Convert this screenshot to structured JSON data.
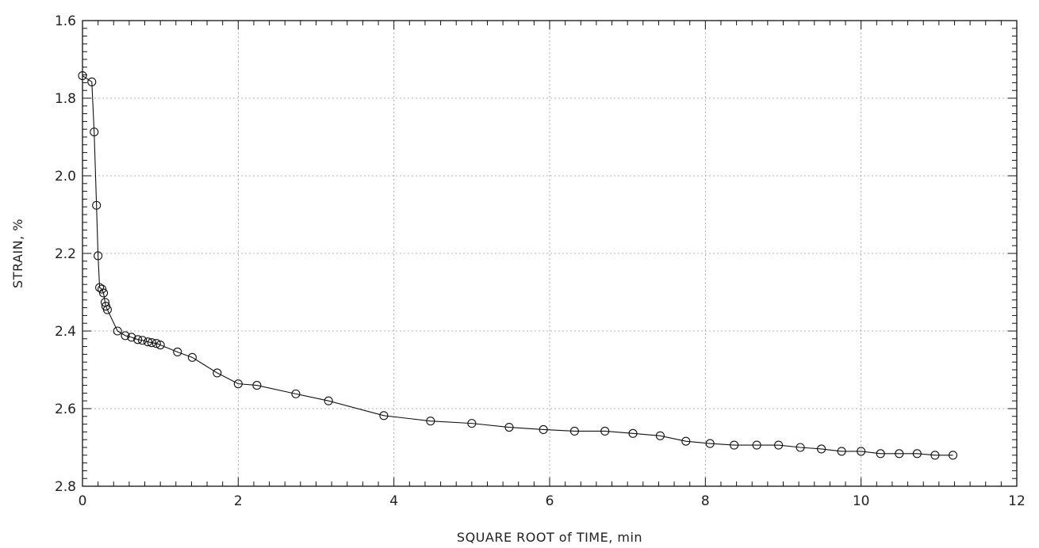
{
  "chart_data": {
    "type": "line",
    "xlabel": "SQUARE ROOT of TIME, min",
    "ylabel": "STRAIN, %",
    "xlim": [
      0,
      12
    ],
    "ylim": [
      1.6,
      2.8
    ],
    "y_inverted": true,
    "grid": true,
    "x_ticks": [
      0,
      2,
      4,
      6,
      8,
      10,
      12
    ],
    "y_ticks": [
      1.6,
      1.8,
      2.0,
      2.2,
      2.4,
      2.6,
      2.8
    ],
    "x_tick_labels": [
      "0",
      "2",
      "4",
      "6",
      "8",
      "10",
      "12"
    ],
    "y_tick_labels": [
      "1.6",
      "1.8",
      "2.0",
      "2.2",
      "2.4",
      "2.6",
      "2.8"
    ],
    "marker": "open-circle",
    "series": [
      {
        "x": [
          0.0,
          0.12,
          0.15,
          0.18,
          0.2,
          0.22,
          0.25,
          0.27,
          0.29,
          0.3,
          0.32,
          0.45,
          0.55,
          0.63,
          0.71,
          0.77,
          0.84,
          0.89,
          0.95,
          1.0,
          1.22,
          1.41,
          1.73,
          2.0,
          2.24,
          2.74,
          3.16,
          3.87,
          4.47,
          5.0,
          5.48,
          5.92,
          6.32,
          6.71,
          7.07,
          7.42,
          7.75,
          8.06,
          8.37,
          8.66,
          8.94,
          9.22,
          9.49,
          9.75,
          10.0,
          10.25,
          10.49,
          10.72,
          10.95,
          11.18
        ],
        "y": [
          1.742,
          1.758,
          1.887,
          2.076,
          2.206,
          2.288,
          2.292,
          2.302,
          2.326,
          2.336,
          2.345,
          2.4,
          2.412,
          2.416,
          2.422,
          2.424,
          2.428,
          2.43,
          2.432,
          2.436,
          2.454,
          2.468,
          2.508,
          2.536,
          2.54,
          2.562,
          2.58,
          2.618,
          2.632,
          2.638,
          2.648,
          2.654,
          2.658,
          2.658,
          2.664,
          2.67,
          2.684,
          2.69,
          2.694,
          2.694,
          2.694,
          2.7,
          2.704,
          2.71,
          2.71,
          2.716,
          2.716,
          2.716,
          2.72,
          2.72
        ]
      }
    ]
  }
}
